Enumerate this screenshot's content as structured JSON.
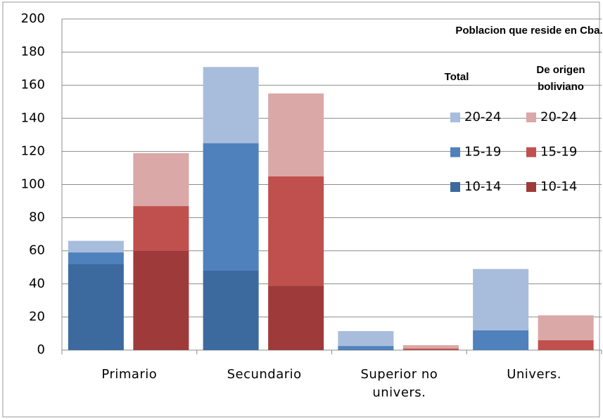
{
  "chart_data": {
    "type": "bar",
    "stacked": true,
    "categories": [
      "Primario",
      "Secundario",
      "Superior no univers.",
      "Univers."
    ],
    "legend_title": "Poblacion que reside en Cba.",
    "groups": [
      {
        "name": "Total",
        "series": [
          {
            "name": "10-14",
            "color": "#3d6a9e",
            "values": [
              52,
              48,
              0.5,
              0
            ]
          },
          {
            "name": "15-19",
            "color": "#4f81bd",
            "values": [
              7,
              77,
              2,
              12
            ]
          },
          {
            "name": "20-24",
            "color": "#a8bddc",
            "values": [
              7,
              46,
              9,
              37
            ]
          }
        ]
      },
      {
        "name": "De origen boliviano",
        "series": [
          {
            "name": "10-14",
            "color": "#9e3b3a",
            "values": [
              60,
              39,
              0,
              0
            ]
          },
          {
            "name": "15-19",
            "color": "#c0504d",
            "values": [
              27,
              66,
              1,
              6
            ]
          },
          {
            "name": "20-24",
            "color": "#d9a8a7",
            "values": [
              32,
              50,
              2,
              15
            ]
          }
        ]
      }
    ],
    "ylim": [
      0,
      200
    ],
    "yticks": [
      0,
      20,
      40,
      60,
      80,
      100,
      120,
      140,
      160,
      180,
      200
    ],
    "grid": true
  }
}
